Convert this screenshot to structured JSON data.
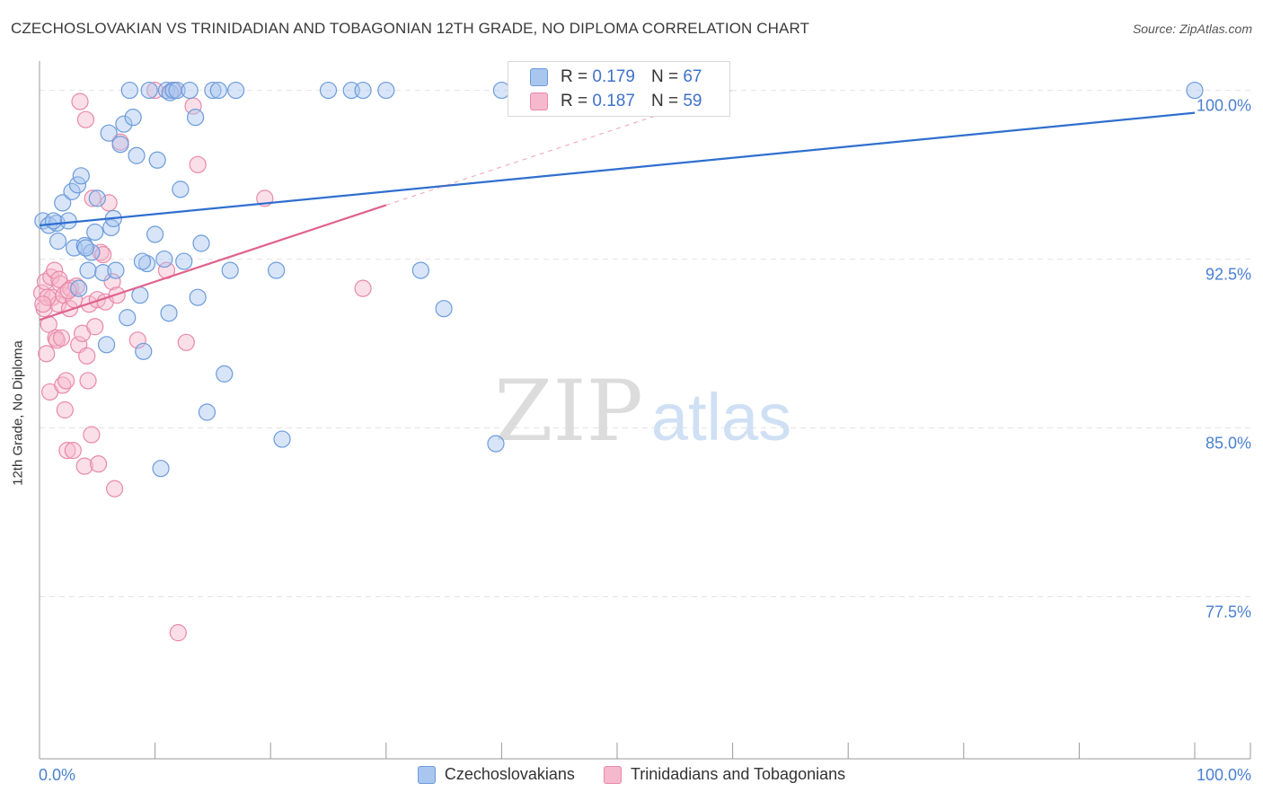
{
  "title": "CZECHOSLOVAKIAN VS TRINIDADIAN AND TOBAGONIAN 12TH GRADE, NO DIPLOMA CORRELATION CHART",
  "source": "Source: ZipAtlas.com",
  "watermark": {
    "zip": "ZIP",
    "atlas": "atlas"
  },
  "colors": {
    "blue_fill": "#a9c6ef",
    "blue_stroke": "#6b9bdb",
    "blue_line": "#2f6fcf",
    "pink_fill": "#f6b8cc",
    "pink_stroke": "#e889a8",
    "pink_line": "#e0628c",
    "axis_text": "#4a7fd0",
    "grid": "#e3e3e3"
  },
  "legend_top": [
    {
      "r_label": "R =",
      "r_value": "0.179",
      "n_label": "N =",
      "n_value": "67"
    },
    {
      "r_label": "R =",
      "r_value": "0.187",
      "n_label": "N =",
      "n_value": "59"
    }
  ],
  "chart_data": {
    "type": "scatter",
    "title": "CZECHOSLOVAKIAN VS TRINIDADIAN AND TOBAGONIAN 12TH GRADE, NO DIPLOMA CORRELATION CHART",
    "ylabel": "12th Grade, No Diploma",
    "xlabel": "",
    "xlim": [
      0,
      100
    ],
    "ylim": [
      70.3,
      101.3
    ],
    "x_tick_labels": [
      "0.0%",
      "100.0%"
    ],
    "y_ticks": [
      100.0,
      92.5,
      85.0,
      77.5
    ],
    "y_tick_labels": [
      "100.0%",
      "92.5%",
      "85.0%",
      "77.5%"
    ],
    "series": [
      {
        "name": "Czechoslovakians",
        "color": "#a9c6ef",
        "trend": {
          "x": [
            0,
            100
          ],
          "y": [
            94.0,
            99.0
          ],
          "solid_to": 100
        },
        "points": [
          [
            0.3,
            94.2
          ],
          [
            0.8,
            94.0
          ],
          [
            1.5,
            94.1
          ],
          [
            2.0,
            95.0
          ],
          [
            2.5,
            94.2
          ],
          [
            2.8,
            95.5
          ],
          [
            3.3,
            95.8
          ],
          [
            3.6,
            96.2
          ],
          [
            1.6,
            93.3
          ],
          [
            3.0,
            93.0
          ],
          [
            3.9,
            93.1
          ],
          [
            4.2,
            92.0
          ],
          [
            4.5,
            92.8
          ],
          [
            4.8,
            93.7
          ],
          [
            5.0,
            95.2
          ],
          [
            5.5,
            91.9
          ],
          [
            6.0,
            98.1
          ],
          [
            5.8,
            88.7
          ],
          [
            6.2,
            93.9
          ],
          [
            6.4,
            94.3
          ],
          [
            7.0,
            97.6
          ],
          [
            7.3,
            98.5
          ],
          [
            7.8,
            100.0
          ],
          [
            8.1,
            98.8
          ],
          [
            8.4,
            97.1
          ],
          [
            8.7,
            90.9
          ],
          [
            9.0,
            88.4
          ],
          [
            9.3,
            92.3
          ],
          [
            9.5,
            100.0
          ],
          [
            10.0,
            93.6
          ],
          [
            10.2,
            96.9
          ],
          [
            10.5,
            83.2
          ],
          [
            10.8,
            92.5
          ],
          [
            11.0,
            100.0
          ],
          [
            11.3,
            99.9
          ],
          [
            11.6,
            100.0
          ],
          [
            11.9,
            100.0
          ],
          [
            12.2,
            95.6
          ],
          [
            12.5,
            92.4
          ],
          [
            13.0,
            100.0
          ],
          [
            13.5,
            98.8
          ],
          [
            14.0,
            93.2
          ],
          [
            14.5,
            85.7
          ],
          [
            15.0,
            100.0
          ],
          [
            15.5,
            100.0
          ],
          [
            16.0,
            87.4
          ],
          [
            16.5,
            92.0
          ],
          [
            17.0,
            100.0
          ],
          [
            20.5,
            92.0
          ],
          [
            21.0,
            84.5
          ],
          [
            25.0,
            100.0
          ],
          [
            27.0,
            100.0
          ],
          [
            28.0,
            100.0
          ],
          [
            30.0,
            100.0
          ],
          [
            33.0,
            92.0
          ],
          [
            35.0,
            90.3
          ],
          [
            39.5,
            84.3
          ],
          [
            40.0,
            100.0
          ],
          [
            1.2,
            94.2
          ],
          [
            4.0,
            93.0
          ],
          [
            6.6,
            92.0
          ],
          [
            8.9,
            92.4
          ],
          [
            11.2,
            90.1
          ],
          [
            13.7,
            90.8
          ],
          [
            7.6,
            89.9
          ],
          [
            3.4,
            91.2
          ],
          [
            100.0,
            100.0
          ]
        ]
      },
      {
        "name": "Trinidadians and Tobagonians",
        "color": "#f6b8cc",
        "trend": {
          "x": [
            0,
            60
          ],
          "y": [
            89.8,
            100.0
          ],
          "solid_to": 30
        },
        "points": [
          [
            0.2,
            91.0
          ],
          [
            0.4,
            90.3
          ],
          [
            0.5,
            91.5
          ],
          [
            0.6,
            88.3
          ],
          [
            0.8,
            89.6
          ],
          [
            0.9,
            86.6
          ],
          [
            1.0,
            91.7
          ],
          [
            1.1,
            90.8
          ],
          [
            1.3,
            92.0
          ],
          [
            1.4,
            89.0
          ],
          [
            1.5,
            88.9
          ],
          [
            1.6,
            90.5
          ],
          [
            1.8,
            91.4
          ],
          [
            2.0,
            86.9
          ],
          [
            2.1,
            90.9
          ],
          [
            2.2,
            85.8
          ],
          [
            2.3,
            87.1
          ],
          [
            2.4,
            84.0
          ],
          [
            2.6,
            90.3
          ],
          [
            2.7,
            91.2
          ],
          [
            2.9,
            84.0
          ],
          [
            3.0,
            90.7
          ],
          [
            3.2,
            91.3
          ],
          [
            3.4,
            88.7
          ],
          [
            3.5,
            99.5
          ],
          [
            3.7,
            89.2
          ],
          [
            3.9,
            83.3
          ],
          [
            4.0,
            98.7
          ],
          [
            4.1,
            88.2
          ],
          [
            4.2,
            87.1
          ],
          [
            4.3,
            90.5
          ],
          [
            4.5,
            84.7
          ],
          [
            4.6,
            95.2
          ],
          [
            4.8,
            89.5
          ],
          [
            5.0,
            90.7
          ],
          [
            5.1,
            83.4
          ],
          [
            5.3,
            92.8
          ],
          [
            5.5,
            92.7
          ],
          [
            5.7,
            90.6
          ],
          [
            6.0,
            95.0
          ],
          [
            6.3,
            91.5
          ],
          [
            6.5,
            82.3
          ],
          [
            6.7,
            90.9
          ],
          [
            7.0,
            97.7
          ],
          [
            8.5,
            88.9
          ],
          [
            10.0,
            100.0
          ],
          [
            11.0,
            92.0
          ],
          [
            11.5,
            100.0
          ],
          [
            12.0,
            75.9
          ],
          [
            12.7,
            88.8
          ],
          [
            13.3,
            99.3
          ],
          [
            13.7,
            96.7
          ],
          [
            19.5,
            95.2
          ],
          [
            28.0,
            91.2
          ],
          [
            0.7,
            90.8
          ],
          [
            1.7,
            91.6
          ],
          [
            2.5,
            91.1
          ],
          [
            0.3,
            90.5
          ],
          [
            1.9,
            89.0
          ]
        ]
      }
    ]
  },
  "legend_bottom": [
    "Czechoslovakians",
    "Trinidadians and Tobagonians"
  ]
}
